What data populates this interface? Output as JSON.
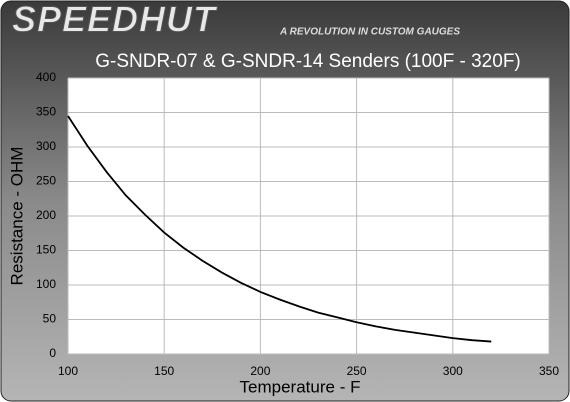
{
  "brand": "SPEEDHUT",
  "tagline": "A REVOLUTION IN CUSTOM GAUGES",
  "chart_data": {
    "type": "line",
    "title": "G-SNDR-07 & G-SNDR-14 Senders (100F - 320F)",
    "x_label": "Temperature - F",
    "y_label": "Resistance - OHM",
    "x": [
      100,
      110,
      120,
      130,
      140,
      150,
      160,
      170,
      180,
      190,
      200,
      210,
      220,
      230,
      240,
      250,
      260,
      270,
      280,
      290,
      300,
      310,
      320
    ],
    "series": [
      {
        "name": "Resistance",
        "color": "#000000",
        "values": [
          345,
          302,
          264,
          230,
          202,
          176,
          154,
          135,
          118,
          103,
          90,
          79,
          69,
          60,
          53,
          46,
          40,
          35,
          31,
          27,
          23,
          20,
          18
        ]
      }
    ],
    "xlim": [
      100,
      350
    ],
    "xticks": [
      100,
      150,
      200,
      250,
      300,
      350
    ],
    "ylim": [
      0,
      400
    ],
    "yticks": [
      0,
      50,
      100,
      150,
      200,
      250,
      300,
      350,
      400
    ],
    "grid": true
  }
}
